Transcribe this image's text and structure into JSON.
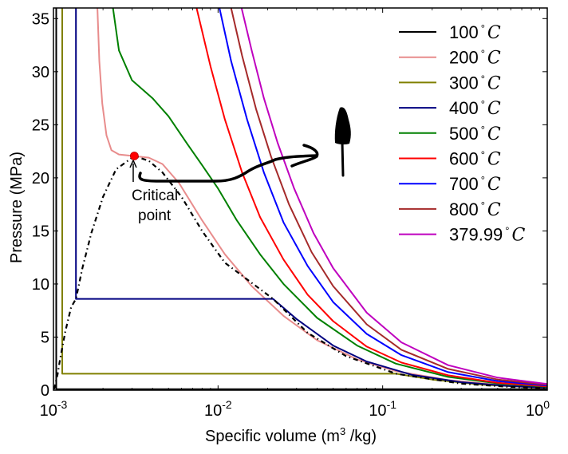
{
  "chart_data": {
    "type": "line",
    "title": "",
    "xlabel": "Specific volume (m",
    "xlabel_sup": "3",
    "xlabel_tail": " /kg)",
    "ylabel": "Pressure (MPa)",
    "xscale": "log",
    "xlim": [
      0.001,
      1
    ],
    "ylim": [
      0,
      36
    ],
    "grid": false,
    "legend_position": "top-right",
    "x_ticks": [
      {
        "value": 0.001,
        "base": "10",
        "exp": "-3"
      },
      {
        "value": 0.01,
        "base": "10",
        "exp": "-2"
      },
      {
        "value": 0.1,
        "base": "10",
        "exp": "-1"
      },
      {
        "value": 1,
        "base": "10",
        "exp": "0"
      }
    ],
    "y_ticks": [
      0,
      5,
      10,
      15,
      20,
      25,
      30,
      35
    ],
    "series": [
      {
        "name": "100",
        "unit": "C",
        "color": "#000000",
        "points": [
          [
            0.00104,
            36
          ],
          [
            0.00104,
            0.1
          ],
          [
            1,
            0.1
          ]
        ]
      },
      {
        "name": "200",
        "unit": "C",
        "color": "#e88c8c",
        "points": [
          [
            0.00185,
            36
          ],
          [
            0.0019,
            31
          ],
          [
            0.00198,
            27
          ],
          [
            0.0021,
            24
          ],
          [
            0.00225,
            22.6
          ],
          [
            0.0025,
            22.2
          ],
          [
            0.0031,
            22.05
          ],
          [
            0.0038,
            21.9
          ],
          [
            0.0046,
            21.3
          ],
          [
            0.0058,
            19.5
          ],
          [
            0.008,
            16
          ],
          [
            0.011,
            12.8
          ],
          [
            0.016,
            9.8
          ],
          [
            0.025,
            7.0
          ],
          [
            0.04,
            4.7
          ],
          [
            0.07,
            2.9
          ],
          [
            0.12,
            1.8
          ],
          [
            0.25,
            0.95
          ],
          [
            0.5,
            0.5
          ],
          [
            1,
            0.26
          ]
        ]
      },
      {
        "name": "300",
        "unit": "C",
        "color": "#808000",
        "points": [
          [
            0.00113,
            36
          ],
          [
            0.00113,
            1.55
          ],
          [
            0.121,
            1.55
          ],
          [
            0.2,
            1.0
          ],
          [
            0.4,
            0.52
          ],
          [
            1,
            0.2
          ]
        ]
      },
      {
        "name": "400",
        "unit": "C",
        "color": "#000080",
        "points": [
          [
            0.00137,
            36
          ],
          [
            0.00137,
            8.6
          ],
          [
            0.0216,
            8.6
          ],
          [
            0.03,
            6.7
          ],
          [
            0.05,
            4.2
          ],
          [
            0.08,
            2.7
          ],
          [
            0.15,
            1.45
          ],
          [
            0.3,
            0.75
          ],
          [
            0.6,
            0.38
          ],
          [
            1,
            0.23
          ]
        ]
      },
      {
        "name": "500",
        "unit": "C",
        "color": "#008000",
        "points": [
          [
            0.0023,
            36
          ],
          [
            0.0025,
            32
          ],
          [
            0.003,
            29.2
          ],
          [
            0.004,
            27.5
          ],
          [
            0.005,
            25.8
          ],
          [
            0.0065,
            23.2
          ],
          [
            0.008,
            21.2
          ],
          [
            0.01,
            19.0
          ],
          [
            0.013,
            16.0
          ],
          [
            0.018,
            12.8
          ],
          [
            0.025,
            10.0
          ],
          [
            0.04,
            6.8
          ],
          [
            0.07,
            4.2
          ],
          [
            0.12,
            2.5
          ],
          [
            0.25,
            1.25
          ],
          [
            0.5,
            0.64
          ],
          [
            1,
            0.32
          ]
        ]
      },
      {
        "name": "600",
        "unit": "C",
        "color": "#ff0000",
        "points": [
          [
            0.0074,
            36
          ],
          [
            0.009,
            30.5
          ],
          [
            0.011,
            25.5
          ],
          [
            0.014,
            20.5
          ],
          [
            0.018,
            16.3
          ],
          [
            0.025,
            12.3
          ],
          [
            0.035,
            9.0
          ],
          [
            0.05,
            6.5
          ],
          [
            0.08,
            4.1
          ],
          [
            0.13,
            2.6
          ],
          [
            0.25,
            1.4
          ],
          [
            0.5,
            0.7
          ],
          [
            1,
            0.36
          ]
        ]
      },
      {
        "name": "700",
        "unit": "C",
        "color": "#0000ff",
        "points": [
          [
            0.0102,
            36
          ],
          [
            0.012,
            31
          ],
          [
            0.015,
            25.5
          ],
          [
            0.019,
            20.5
          ],
          [
            0.025,
            15.8
          ],
          [
            0.035,
            11.7
          ],
          [
            0.05,
            8.3
          ],
          [
            0.08,
            5.3
          ],
          [
            0.13,
            3.3
          ],
          [
            0.25,
            1.7
          ],
          [
            0.5,
            0.86
          ],
          [
            1,
            0.43
          ]
        ]
      },
      {
        "name": "800",
        "unit": "C",
        "color": "#a52a2a",
        "points": [
          [
            0.012,
            36
          ],
          [
            0.014,
            31.5
          ],
          [
            0.017,
            26.5
          ],
          [
            0.021,
            22.0
          ],
          [
            0.027,
            17.5
          ],
          [
            0.037,
            13.0
          ],
          [
            0.05,
            9.8
          ],
          [
            0.08,
            6.2
          ],
          [
            0.13,
            3.8
          ],
          [
            0.25,
            2.0
          ],
          [
            0.5,
            1.0
          ],
          [
            1,
            0.5
          ]
        ]
      },
      {
        "name": "379.99",
        "unit": "C",
        "color": "#bf00bf",
        "points": [
          [
            0.0139,
            36
          ],
          [
            0.016,
            32
          ],
          [
            0.019,
            27.5
          ],
          [
            0.023,
            23.3
          ],
          [
            0.029,
            19.0
          ],
          [
            0.038,
            14.8
          ],
          [
            0.05,
            11.5
          ],
          [
            0.08,
            7.3
          ],
          [
            0.13,
            4.5
          ],
          [
            0.25,
            2.35
          ],
          [
            0.5,
            1.18
          ],
          [
            1,
            0.58
          ]
        ]
      }
    ],
    "saturation_dome": {
      "style": "dash-dot",
      "color": "#000000",
      "points": [
        [
          0.00101,
          0.1
        ],
        [
          0.00106,
          1.5
        ],
        [
          0.0011,
          3.0
        ],
        [
          0.00118,
          5.5
        ],
        [
          0.00128,
          7.8
        ],
        [
          0.00137,
          8.6
        ],
        [
          0.0015,
          11.5
        ],
        [
          0.0017,
          14.8
        ],
        [
          0.002,
          18.2
        ],
        [
          0.0024,
          20.8
        ],
        [
          0.0031,
          22.06
        ],
        [
          0.0038,
          21.6
        ],
        [
          0.0046,
          20.5
        ],
        [
          0.006,
          18.2
        ],
        [
          0.008,
          15.0
        ],
        [
          0.011,
          12.0
        ],
        [
          0.0216,
          8.6
        ],
        [
          0.035,
          5.4
        ],
        [
          0.06,
          3.2
        ],
        [
          0.121,
          1.55
        ],
        [
          0.3,
          0.62
        ],
        [
          0.6,
          0.3
        ],
        [
          1,
          0.18
        ]
      ]
    },
    "critical_point": {
      "v": 0.0031,
      "p": 22.06,
      "color": "#ff0000",
      "label_line1": "Critical",
      "label_line2": "point"
    }
  }
}
